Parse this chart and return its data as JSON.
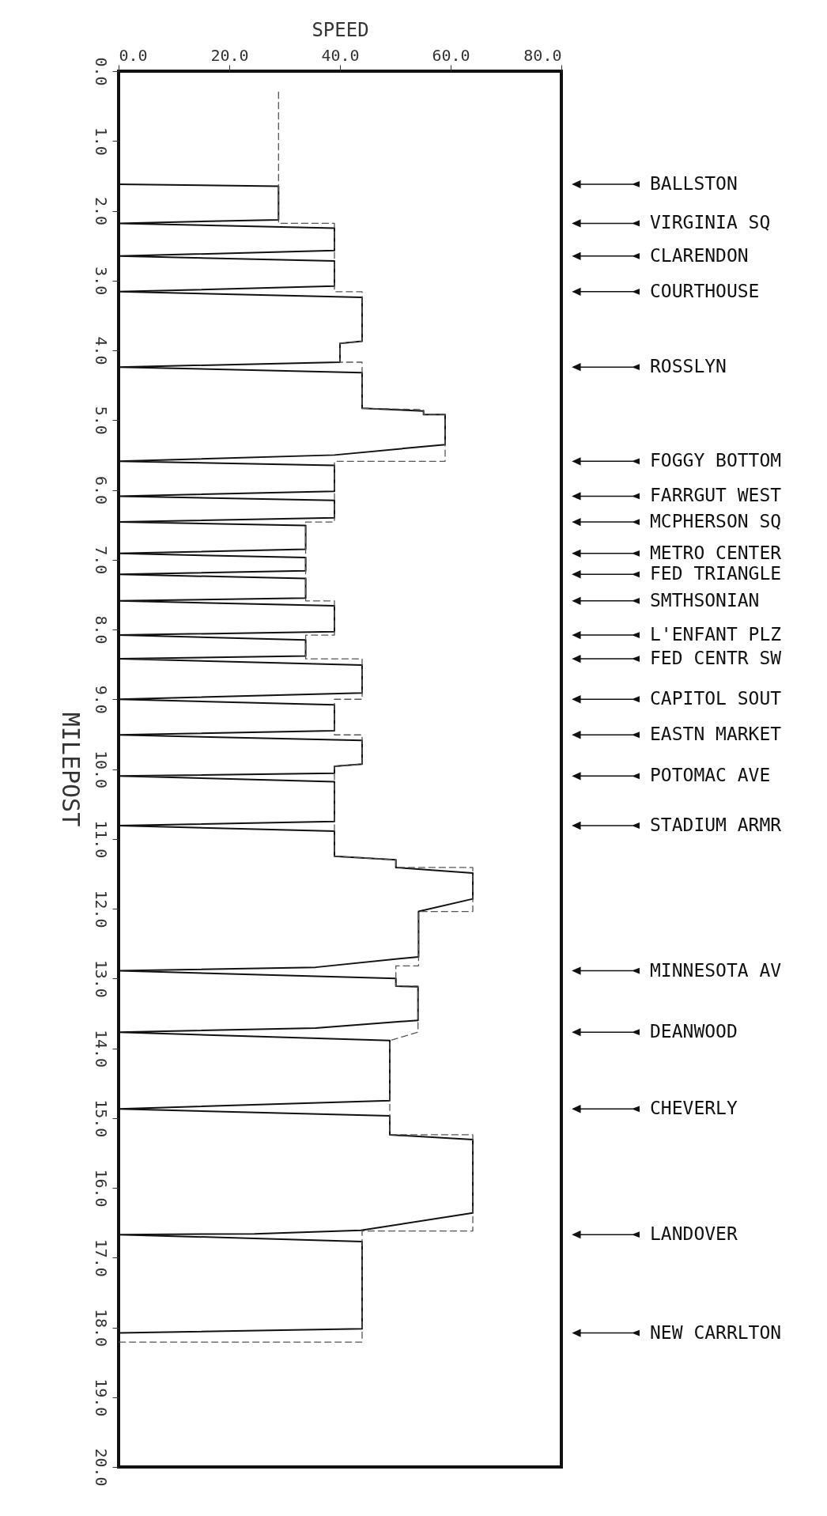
{
  "chart_data": {
    "type": "line",
    "xlabel": "SPEED",
    "ylabel": "MILEPOST",
    "xlim": [
      0,
      80
    ],
    "xticks": [
      {
        "value": 0,
        "label": "0.0"
      },
      {
        "value": 20,
        "label": "20.0"
      },
      {
        "value": 40,
        "label": "40.0"
      },
      {
        "value": 60,
        "label": "60.0"
      },
      {
        "value": 80,
        "label": "80.0"
      }
    ],
    "ylim": [
      20,
      0
    ],
    "yticks": [
      {
        "value": 0,
        "label": "0.0"
      },
      {
        "value": 1,
        "label": "1.0"
      },
      {
        "value": 2,
        "label": "2.0"
      },
      {
        "value": 3,
        "label": "3.0"
      },
      {
        "value": 4,
        "label": "4.0"
      },
      {
        "value": 5,
        "label": "5.0"
      },
      {
        "value": 6,
        "label": "6.0"
      },
      {
        "value": 7,
        "label": "7.0"
      },
      {
        "value": 8,
        "label": "8.0"
      },
      {
        "value": 9,
        "label": "9.0"
      },
      {
        "value": 10,
        "label": "10.0"
      },
      {
        "value": 11,
        "label": "11.0"
      },
      {
        "value": 12,
        "label": "12.0"
      },
      {
        "value": 13,
        "label": "13.0"
      },
      {
        "value": 14,
        "label": "14.0"
      },
      {
        "value": 15,
        "label": "15.0"
      },
      {
        "value": 16,
        "label": "16.0"
      },
      {
        "value": 17,
        "label": "17.0"
      },
      {
        "value": 18,
        "label": "18.0"
      },
      {
        "value": 19,
        "label": "19.0"
      },
      {
        "value": 20,
        "label": "20.0"
      }
    ],
    "grid": false,
    "marker": "none",
    "series": [
      {
        "color": "#111111",
        "line_style": "solid",
        "x": [
          0,
          28.9,
          28.9,
          0,
          39,
          39,
          0,
          39,
          39,
          0,
          44,
          44,
          40,
          40,
          0,
          44,
          44,
          55.1,
          55.1,
          59,
          59,
          39,
          0,
          39,
          39,
          0,
          39,
          39,
          0,
          33.8,
          33.8,
          0,
          33.8,
          33.8,
          0,
          33.8,
          33.8,
          0,
          39,
          39,
          0,
          33.8,
          33.8,
          0,
          44,
          44,
          0,
          39,
          39,
          0,
          44,
          44,
          39,
          39,
          0,
          39,
          39,
          0,
          39,
          39,
          50.1,
          50.1,
          64,
          64,
          54.2,
          54.2,
          35.6,
          0,
          50.1,
          50.1,
          54.1,
          54.1,
          35.6,
          0,
          49,
          49,
          0,
          49,
          49,
          64,
          64,
          43.8,
          24.6,
          0,
          44,
          44,
          0
        ],
        "values": [
          1.62,
          1.65,
          2.13,
          2.18,
          2.25,
          2.57,
          2.65,
          2.72,
          3.08,
          3.16,
          3.24,
          3.87,
          3.9,
          4.17,
          4.24,
          4.32,
          4.83,
          4.87,
          4.92,
          4.92,
          5.35,
          5.5,
          5.59,
          5.65,
          6.02,
          6.09,
          6.15,
          6.4,
          6.46,
          6.51,
          6.85,
          6.91,
          6.97,
          7.16,
          7.21,
          7.27,
          7.55,
          7.59,
          7.66,
          8.03,
          8.08,
          8.15,
          8.38,
          8.42,
          8.51,
          8.91,
          9.0,
          9.08,
          9.45,
          9.51,
          9.59,
          9.93,
          9.96,
          10.06,
          10.1,
          10.18,
          10.75,
          10.81,
          10.89,
          11.25,
          11.3,
          11.41,
          11.49,
          11.86,
          12.04,
          12.69,
          12.84,
          12.89,
          13.0,
          13.11,
          13.12,
          13.6,
          13.71,
          13.77,
          13.89,
          14.75,
          14.87,
          14.97,
          15.24,
          15.31,
          16.36,
          16.61,
          16.66,
          16.67,
          16.77,
          18.02,
          18.08
        ]
      },
      {
        "color": "#555555",
        "line_style": "dashed",
        "x": [
          28.9,
          28.9,
          39,
          39,
          44,
          44,
          40,
          40,
          44,
          44,
          55.1,
          55.1,
          59,
          59,
          39,
          39,
          33.8,
          33.8,
          39,
          39,
          33.8,
          33.8,
          44,
          44,
          39,
          39,
          44,
          44,
          39,
          39,
          50.1,
          50.1,
          64,
          64,
          54.2,
          54.2,
          50.1,
          50.1,
          54.1,
          54.1,
          49,
          49,
          64,
          64,
          44,
          44,
          0
        ],
        "values": [
          0.3,
          2.18,
          2.18,
          3.16,
          3.16,
          3.87,
          3.9,
          4.17,
          4.17,
          4.83,
          4.85,
          4.92,
          4.92,
          5.59,
          5.59,
          6.46,
          6.46,
          7.59,
          7.59,
          8.08,
          8.08,
          8.42,
          8.42,
          9.0,
          9.0,
          9.51,
          9.51,
          9.93,
          9.96,
          11.25,
          11.3,
          11.41,
          11.41,
          12.04,
          12.04,
          12.82,
          12.82,
          13.11,
          13.11,
          13.77,
          13.89,
          15.24,
          15.24,
          16.62,
          16.62,
          18.21,
          18.21
        ]
      }
    ],
    "annotations": [
      "BALLSTON",
      "VIRGINIA SQ",
      "CLARENDON",
      "COURTHOUSE",
      "ROSSLYN",
      "FOGGY BOTTOM",
      "FARRGUT WEST",
      "MCPHERSON SQ",
      "METRO CENTER",
      "FED TRIANGLE",
      "SMTHSONIAN",
      "L'ENFANT PLZ",
      "FED CENTR SW",
      "CAPITOL SOUT",
      "EASTN MARKET",
      "POTOMAC AVE",
      "STADIUM ARMR",
      "MINNESOTA AV",
      "DEANWOOD",
      "CHEVERLY",
      "LANDOVER",
      "NEW CARRLTON"
    ]
  }
}
